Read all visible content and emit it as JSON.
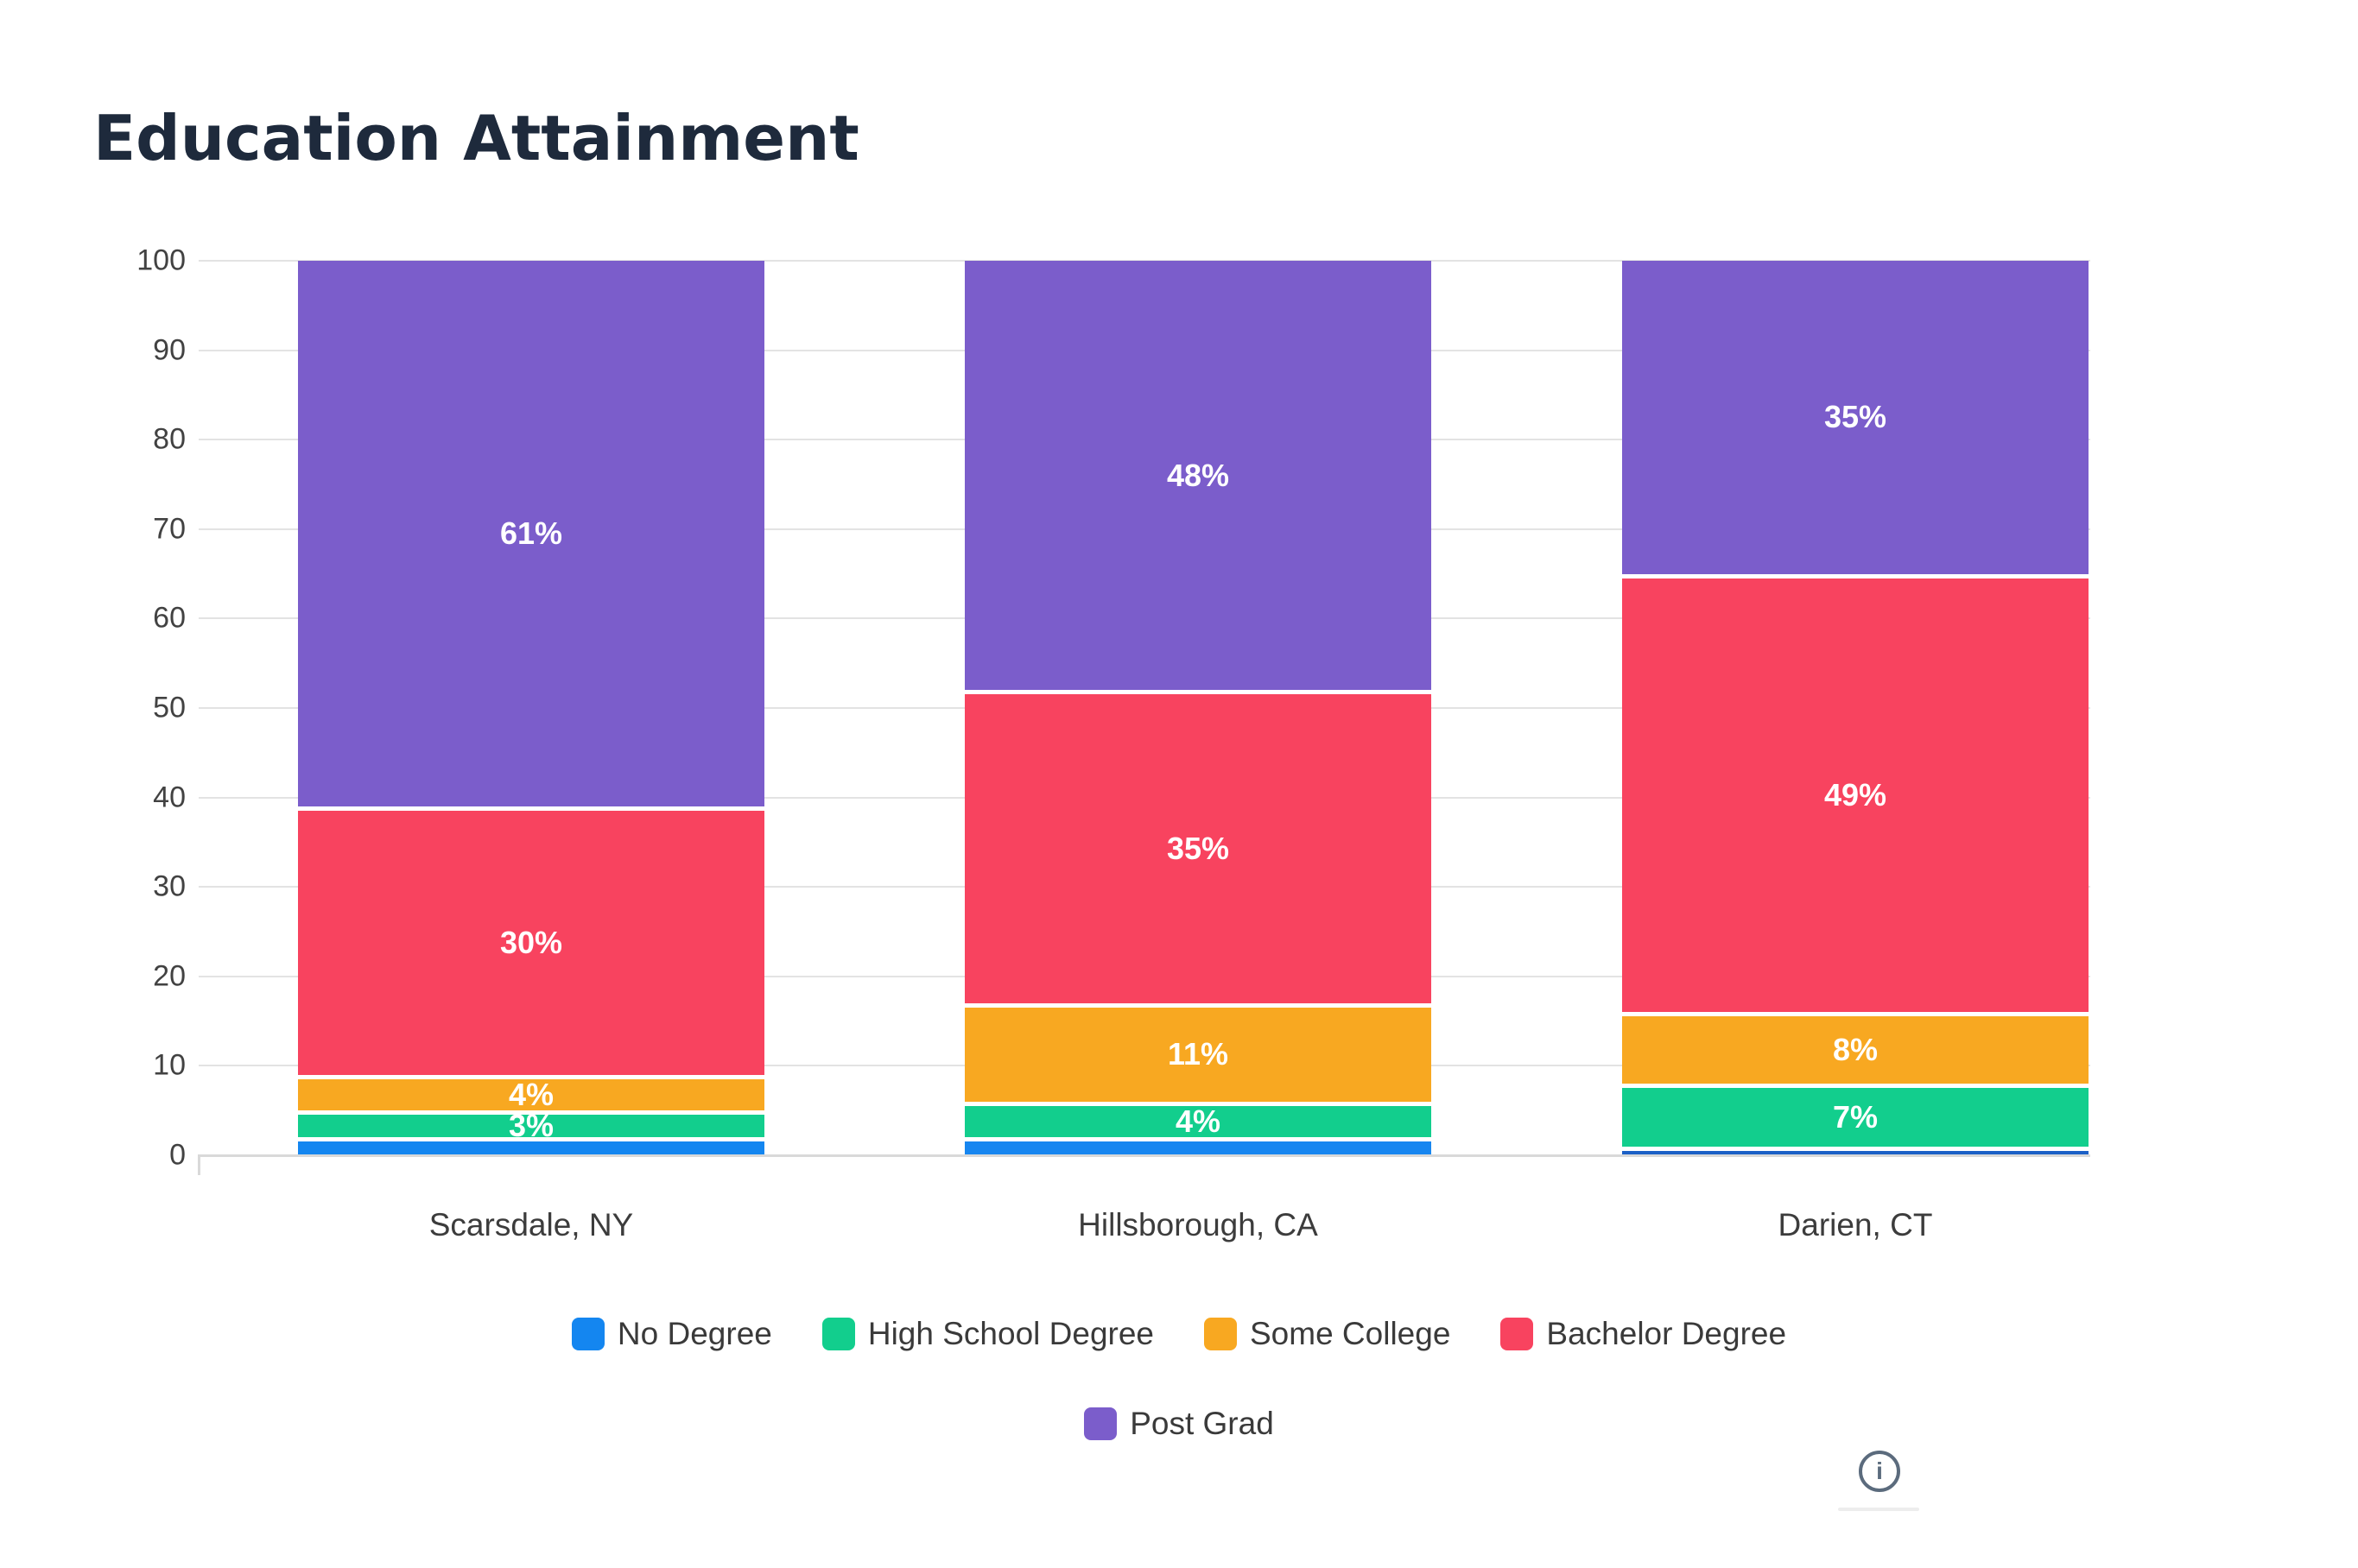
{
  "title": "Education Attainment",
  "chart_data": {
    "type": "bar",
    "subtype": "stacked-percent-column",
    "title": "Education Attainment",
    "categories": [
      "Scarsdale, NY",
      "Hillsborough, CA",
      "Darien, CT"
    ],
    "series": [
      {
        "name": "No Degree",
        "color": "#1486F0",
        "bar_colors": [
          "#1486F0",
          "#1786F0",
          "#1C60C6"
        ],
        "values": [
          2,
          2,
          1
        ],
        "labels": [
          "",
          "",
          ""
        ]
      },
      {
        "name": "High School Degree",
        "color": "#12CE8D",
        "values": [
          3,
          4,
          7
        ],
        "labels": [
          "3%",
          "4%",
          "7%"
        ]
      },
      {
        "name": "Some College",
        "color": "#F8A821",
        "values": [
          4,
          11,
          8
        ],
        "labels": [
          "4%",
          "11%",
          "8%"
        ]
      },
      {
        "name": "Bachelor Degree",
        "color": "#F8435F",
        "values": [
          30,
          35,
          49
        ],
        "labels": [
          "30%",
          "35%",
          "49%"
        ]
      },
      {
        "name": "Post Grad",
        "color": "#7B5DCB",
        "values": [
          61,
          48,
          35
        ],
        "labels": [
          "61%",
          "48%",
          "35%"
        ]
      }
    ],
    "legend_rows": [
      [
        0,
        1,
        2,
        3
      ],
      [
        4
      ]
    ],
    "xlabel": "",
    "ylabel": "",
    "y_ticks": [
      0,
      10,
      20,
      30,
      40,
      50,
      60,
      70,
      80,
      90,
      100
    ],
    "ylim": [
      0,
      100
    ],
    "grid": true,
    "legend_position": "bottom",
    "bar_value_label_color": "#ffffff",
    "segment_gap_color": "#ffffff"
  },
  "footer": {
    "info_icon_glyph": "i"
  }
}
